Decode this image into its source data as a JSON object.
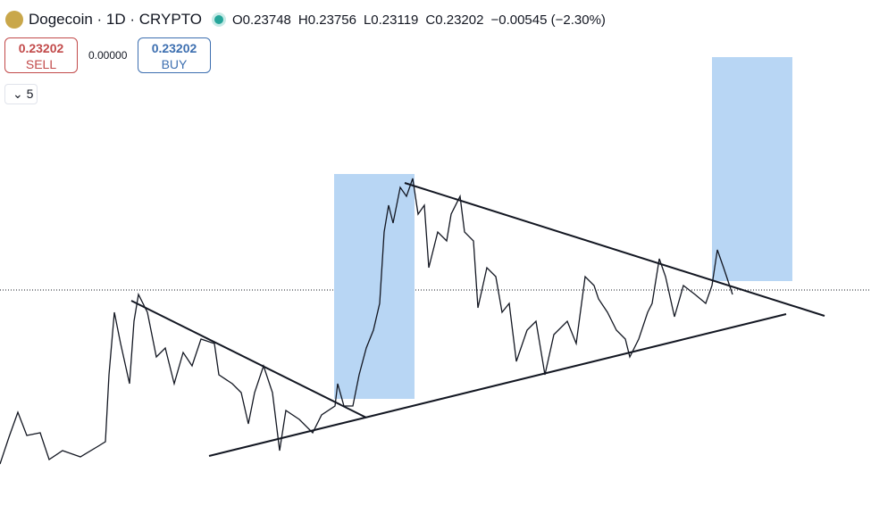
{
  "header": {
    "title": "Dogecoin · 1D · CRYPTO",
    "open": "O0.23748",
    "high": "H0.23756",
    "low": "L0.23119",
    "close": "C0.23202",
    "change": "−0.00545 (−2.30%)"
  },
  "trade": {
    "sell_price": "0.23202",
    "sell_label": "SELL",
    "spread": "0.00000",
    "buy_price": "0.23202",
    "buy_label": "BUY"
  },
  "indicators": {
    "count": "5"
  }
}
